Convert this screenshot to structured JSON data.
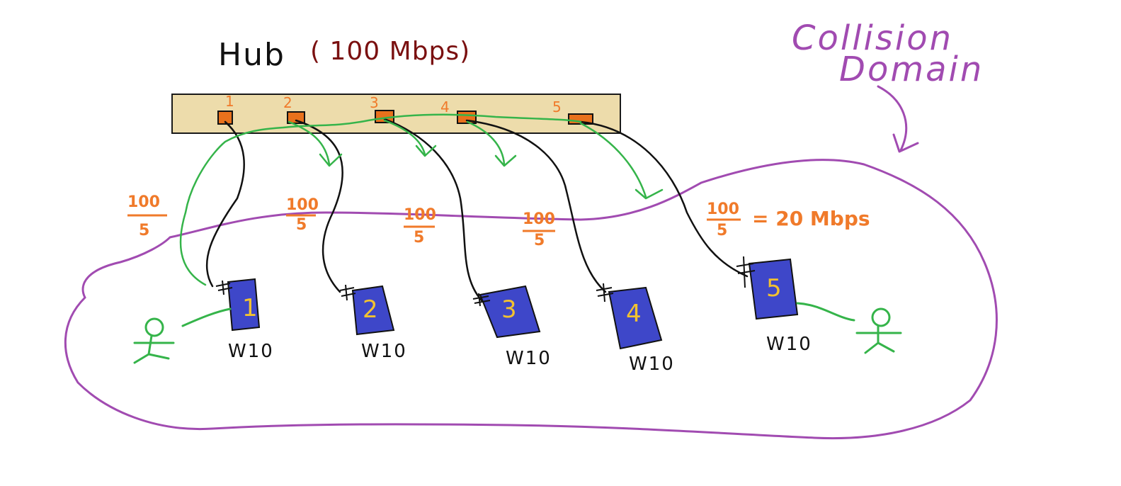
{
  "hub": {
    "title": "Hub",
    "speed": "( 100 Mbps)",
    "ports": [
      "1",
      "2",
      "3",
      "4",
      "5"
    ]
  },
  "collision_domain": {
    "line1": "Collision",
    "line2": "Domain"
  },
  "shares": {
    "numerator": "100",
    "denominator": "5",
    "result": "= 20 Mbps"
  },
  "computers": [
    {
      "number": "1",
      "os": "W10"
    },
    {
      "number": "2",
      "os": "W10"
    },
    {
      "number": "3",
      "os": "W10"
    },
    {
      "number": "4",
      "os": "W10"
    },
    {
      "number": "5",
      "os": "W10"
    }
  ],
  "colors": {
    "hub_fill": "#eddcab",
    "hub_stroke": "#1a1a1a",
    "port_fill": "#e8711c",
    "title_black": "#111111",
    "title_red": "#7a1010",
    "orange": "#f07a2a",
    "purple": "#a14bb1",
    "green": "#35b44a",
    "pc_fill": "#3e47c9",
    "pc_number": "#f2c230",
    "cable": "#111111"
  }
}
